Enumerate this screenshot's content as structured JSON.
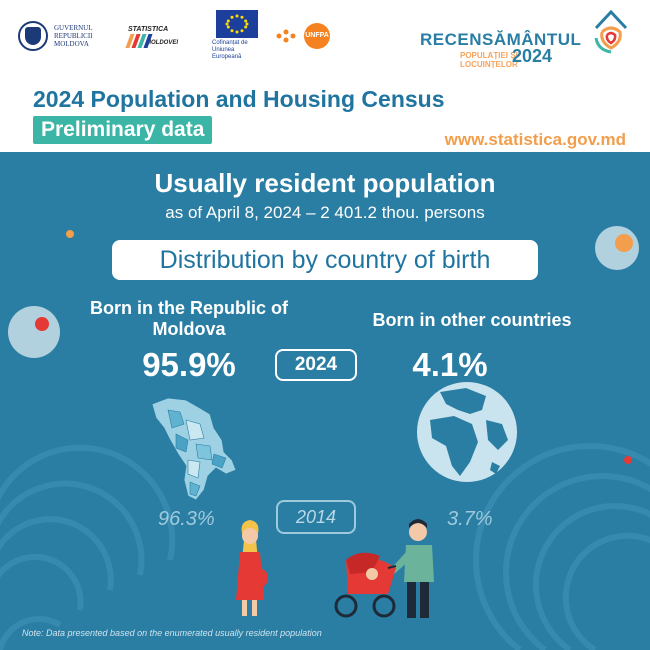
{
  "header": {
    "gov_logo_text": "GUVERNUL REPUBLICII MOLDOVA",
    "stat_logo_top": "STATISTICA",
    "stat_logo_bottom": "MOLDOVEI",
    "eu_text": "Cofinanțat de Uniunea Europeană",
    "unfpa_text": "UNFPA",
    "recens_title": "RECENSĂMÂNTUL",
    "recens_sub_line1": "POPULAȚIEI ȘI",
    "recens_sub_line2": "LOCUINȚELOR",
    "recens_year": "2024",
    "census_title": "2024 Population and Housing Census",
    "preliminary": "Preliminary data",
    "website": "www.statistica.gov.md"
  },
  "main": {
    "title": "Usually resident population",
    "subtitle": "as of April 8, 2024 – 2 401.2 thou. persons",
    "distribution_label": "Distribution by country of birth",
    "left": {
      "label": "Born in the Republic of Moldova",
      "value_2024": "95.9%",
      "value_2014": "96.3%"
    },
    "right": {
      "label": "Born in other countries",
      "value_2024": "4.1%",
      "value_2014": "3.7%"
    },
    "year_current": "2024",
    "year_previous": "2014"
  },
  "note": "Note: Data presented based on the enumerated usually resident population",
  "icons": [
    "moldova-map-icon",
    "globe-icon",
    "pregnant-woman-icon",
    "man-with-stroller-icon",
    "government-seal-icon",
    "eu-flag-icon"
  ],
  "colors": {
    "background": "#2a7ea3",
    "header_bg": "#ffffff",
    "title_blue": "#1f74a0",
    "teal": "#3bb6a6",
    "orange": "#f29e4c",
    "red": "#e53935"
  }
}
